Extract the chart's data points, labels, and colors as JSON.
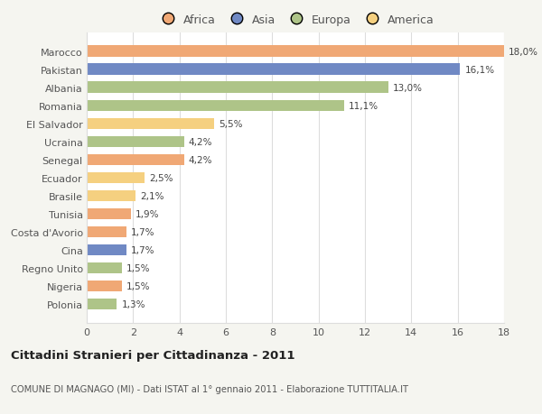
{
  "countries": [
    "Polonia",
    "Nigeria",
    "Regno Unito",
    "Cina",
    "Costa d'Avorio",
    "Tunisia",
    "Brasile",
    "Ecuador",
    "Senegal",
    "Ucraina",
    "El Salvador",
    "Romania",
    "Albania",
    "Pakistan",
    "Marocco"
  ],
  "values": [
    1.3,
    1.5,
    1.5,
    1.7,
    1.7,
    1.9,
    2.1,
    2.5,
    4.2,
    4.2,
    5.5,
    11.1,
    13.0,
    16.1,
    18.0
  ],
  "labels": [
    "1,3%",
    "1,5%",
    "1,5%",
    "1,7%",
    "1,7%",
    "1,9%",
    "2,1%",
    "2,5%",
    "4,2%",
    "4,2%",
    "5,5%",
    "11,1%",
    "13,0%",
    "16,1%",
    "18,0%"
  ],
  "colors": [
    "#aec488",
    "#f0a875",
    "#aec488",
    "#7089c4",
    "#f0a875",
    "#f0a875",
    "#f5d080",
    "#f5d080",
    "#f0a875",
    "#aec488",
    "#f5d080",
    "#aec488",
    "#aec488",
    "#7089c4",
    "#f0a875"
  ],
  "continent_legend": [
    "Africa",
    "Asia",
    "Europa",
    "America"
  ],
  "continent_colors": [
    "#f0a875",
    "#7089c4",
    "#aec488",
    "#f5d080"
  ],
  "title": "Cittadini Stranieri per Cittadinanza - 2011",
  "subtitle": "COMUNE DI MAGNAGO (MI) - Dati ISTAT al 1° gennaio 2011 - Elaborazione TUTTITALIA.IT",
  "xlim": [
    0,
    18
  ],
  "xticks": [
    0,
    2,
    4,
    6,
    8,
    10,
    12,
    14,
    16,
    18
  ],
  "background_color": "#f5f5f0",
  "plot_background": "#ffffff",
  "grid_color": "#dddddd",
  "bar_height": 0.62
}
